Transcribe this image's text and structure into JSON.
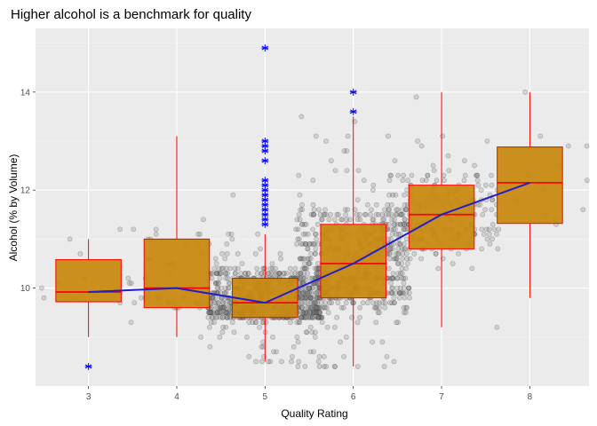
{
  "chart_data": {
    "type": "box",
    "title": "Higher alcohol is a benchmark for quality",
    "xlabel": "Quality Rating",
    "ylabel": "Alcohol (% by Volume)",
    "x_ticks": [
      "3",
      "4",
      "5",
      "6",
      "7",
      "8"
    ],
    "y_ticks": [
      "10",
      "12",
      "14"
    ],
    "xlim": [
      2.4,
      8.67
    ],
    "ylim": [
      8.0,
      15.3
    ],
    "grid": true,
    "panel_background": "#ebebeb",
    "box_fill": "#c8880e",
    "box_line": "#ff0000",
    "mean_line_color": "#1f1fcc",
    "point_color": "#7f7f7f",
    "boxes": [
      {
        "quality": 3,
        "q1": 9.72,
        "median": 9.92,
        "q3": 10.58,
        "whisker_low": 9.0,
        "whisker_high": 11.0,
        "outliers": [
          8.4
        ]
      },
      {
        "quality": 4,
        "q1": 9.6,
        "median": 10.0,
        "q3": 11.0,
        "whisker_low": 9.0,
        "whisker_high": 13.1,
        "outliers": []
      },
      {
        "quality": 5,
        "q1": 9.4,
        "median": 9.7,
        "q3": 10.2,
        "whisker_low": 8.5,
        "whisker_high": 11.1,
        "outliers": [
          11.3,
          11.4,
          11.5,
          11.6,
          11.7,
          11.8,
          11.9,
          12.0,
          12.1,
          12.2,
          12.6,
          12.8,
          12.9,
          13.0,
          14.9
        ]
      },
      {
        "quality": 6,
        "q1": 9.8,
        "median": 10.5,
        "q3": 11.3,
        "whisker_low": 8.4,
        "whisker_high": 13.5,
        "outliers": [
          13.6,
          14.0
        ]
      },
      {
        "quality": 7,
        "q1": 10.8,
        "median": 11.5,
        "q3": 12.1,
        "whisker_low": 9.2,
        "whisker_high": 14.0,
        "outliers": []
      },
      {
        "quality": 8,
        "q1": 11.32,
        "median": 12.15,
        "q3": 12.88,
        "whisker_low": 9.8,
        "whisker_high": 14.0,
        "outliers": []
      }
    ],
    "mean_line": {
      "x": [
        3,
        4,
        5,
        6,
        7,
        8
      ],
      "y": [
        9.92,
        10.0,
        9.7,
        10.5,
        11.5,
        12.15
      ]
    }
  }
}
